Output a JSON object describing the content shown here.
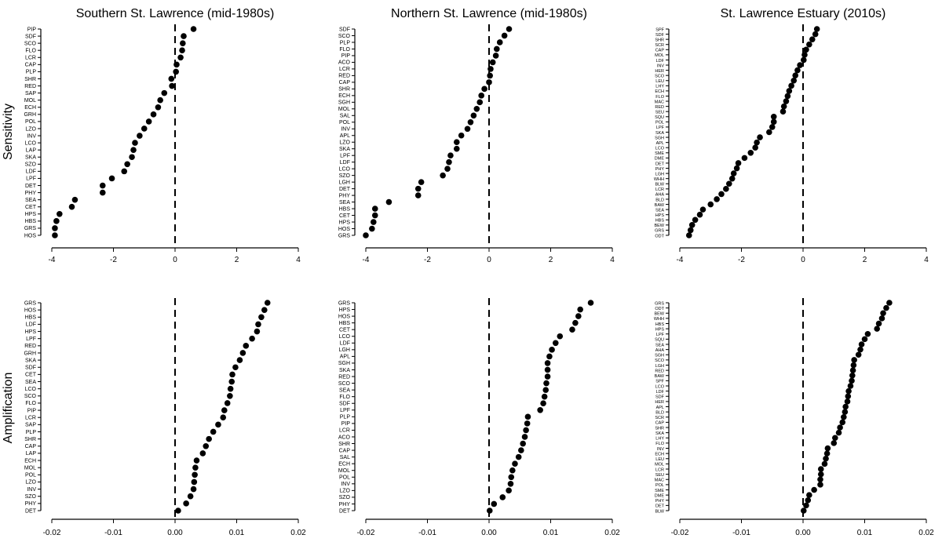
{
  "figure": {
    "row_labels": [
      "Sensitivity",
      "Amplification"
    ]
  },
  "colors": {
    "points": "#000000",
    "axes": "#000000",
    "zero_line": "#000000",
    "background": "#ffffff"
  },
  "chart_data": [
    {
      "type": "scatter",
      "title": "Southern St. Lawrence (mid-1980s)",
      "ylabel": "Sensitivity",
      "xlim": [
        -4,
        4
      ],
      "xticks": [
        "-4",
        "-2",
        "0",
        "2",
        "4"
      ],
      "reference_line": 0,
      "categories": [
        "PIP",
        "SDF",
        "SCO",
        "FLO",
        "LCR",
        "CAP",
        "PLP",
        "SHR",
        "RED",
        "SAP",
        "MOL",
        "ECH",
        "GRH",
        "POL",
        "LZO",
        "INV",
        "LCO",
        "LAP",
        "SKA",
        "SZO",
        "LDF",
        "LPF",
        "DET",
        "PHY",
        "SEA",
        "CET",
        "HPS",
        "HBS",
        "GRS",
        "HOS"
      ],
      "values": [
        0.6,
        0.28,
        0.25,
        0.23,
        0.18,
        0.05,
        0.03,
        -0.12,
        -0.1,
        -0.35,
        -0.48,
        -0.55,
        -0.7,
        -0.85,
        -1.0,
        -1.15,
        -1.3,
        -1.35,
        -1.4,
        -1.55,
        -1.65,
        -2.05,
        -2.35,
        -2.35,
        -3.25,
        -3.35,
        -3.75,
        -3.85,
        -3.9,
        -3.9
      ]
    },
    {
      "type": "scatter",
      "title": "Northern St. Lawrence (mid-1980s)",
      "ylabel": "Sensitivity",
      "xlim": [
        -4,
        4
      ],
      "xticks": [
        "-4",
        "-2",
        "0",
        "2",
        "4"
      ],
      "reference_line": 0,
      "categories": [
        "SDF",
        "SCO",
        "PLP",
        "FLO",
        "PIP",
        "ACO",
        "LCR",
        "RED",
        "CAP",
        "SHR",
        "ECH",
        "SGH",
        "MOL",
        "SAL",
        "POL",
        "INV",
        "APL",
        "LZO",
        "SKA",
        "LPF",
        "LDF",
        "LCO",
        "SZO",
        "LGH",
        "DET",
        "PHY",
        "SEA",
        "HBS",
        "CET",
        "HPS",
        "HOS",
        "GRS"
      ],
      "values": [
        0.65,
        0.5,
        0.35,
        0.25,
        0.22,
        0.12,
        0.05,
        0.03,
        0.0,
        -0.15,
        -0.25,
        -0.3,
        -0.4,
        -0.5,
        -0.6,
        -0.7,
        -0.9,
        -1.05,
        -1.05,
        -1.25,
        -1.3,
        -1.35,
        -1.5,
        -2.2,
        -2.3,
        -2.3,
        -3.25,
        -3.7,
        -3.7,
        -3.75,
        -3.8,
        -4.0
      ]
    },
    {
      "type": "scatter",
      "title": "St. Lawrence Estuary (2010s)",
      "ylabel": "Sensitivity",
      "xlim": [
        -4,
        4
      ],
      "xticks": [
        "-4",
        "-2",
        "0",
        "2",
        "4"
      ],
      "reference_line": 0,
      "categories": [
        "SPF",
        "SDF",
        "SHR",
        "SCR",
        "CAP",
        "MOL",
        "LDF",
        "INV",
        "HER",
        "SCO",
        "LEU",
        "LHY",
        "ECH",
        "FLO",
        "MAC",
        "RED",
        "SEU",
        "SQU",
        "POL",
        "LPF",
        "SKA",
        "SGH",
        "APL",
        "LCO",
        "SME",
        "DME",
        "DET",
        "PHY",
        "LGH",
        "WHH",
        "BLW",
        "LCR",
        "AHA",
        "BLD",
        "BAW",
        "SEA",
        "HPS",
        "HBS",
        "BEW",
        "GRS",
        "ODT"
      ],
      "values": [
        0.45,
        0.4,
        0.3,
        0.2,
        0.1,
        0.05,
        0.02,
        -0.1,
        -0.18,
        -0.25,
        -0.3,
        -0.38,
        -0.45,
        -0.5,
        -0.55,
        -0.62,
        -0.65,
        -0.95,
        -0.95,
        -1.0,
        -1.1,
        -1.4,
        -1.5,
        -1.55,
        -1.7,
        -1.9,
        -2.1,
        -2.15,
        -2.25,
        -2.3,
        -2.4,
        -2.5,
        -2.65,
        -2.8,
        -3.0,
        -3.25,
        -3.35,
        -3.5,
        -3.6,
        -3.65,
        -3.7
      ]
    },
    {
      "type": "scatter",
      "title": "",
      "ylabel": "Amplification",
      "xlim": [
        -0.02,
        0.02
      ],
      "xticks": [
        "-0.02",
        "-0.01",
        "0.00",
        "0.01",
        "0.02"
      ],
      "reference_line": 0,
      "categories": [
        "GRS",
        "HOS",
        "HBS",
        "LDF",
        "HPS",
        "LPF",
        "RED",
        "GRH",
        "SKA",
        "SDF",
        "CET",
        "SEA",
        "LCO",
        "SCO",
        "FLO",
        "PIP",
        "LCR",
        "SAP",
        "PLP",
        "SHR",
        "CAP",
        "LAP",
        "ECH",
        "MOL",
        "POL",
        "LZO",
        "INV",
        "SZO",
        "PHY",
        "DET"
      ],
      "values": [
        0.015,
        0.0145,
        0.014,
        0.0135,
        0.0133,
        0.0125,
        0.0115,
        0.011,
        0.0105,
        0.0098,
        0.0093,
        0.0092,
        0.009,
        0.0089,
        0.0085,
        0.008,
        0.0078,
        0.007,
        0.0062,
        0.0055,
        0.005,
        0.0045,
        0.0035,
        0.0033,
        0.0032,
        0.0031,
        0.003,
        0.0025,
        0.0018,
        0.0005
      ]
    },
    {
      "type": "scatter",
      "title": "",
      "ylabel": "Amplification",
      "xlim": [
        -0.02,
        0.02
      ],
      "xticks": [
        "-0.02",
        "-0.01",
        "0.00",
        "0.01",
        "0.02"
      ],
      "reference_line": 0,
      "categories": [
        "GRS",
        "HPS",
        "HOS",
        "HBS",
        "CET",
        "LCO",
        "LDF",
        "LGH",
        "APL",
        "SGH",
        "SKA",
        "RED",
        "SCO",
        "SEA",
        "FLO",
        "SDF",
        "LPF",
        "PLP",
        "PIP",
        "LCR",
        "ACO",
        "SHR",
        "CAP",
        "SAL",
        "ECH",
        "MOL",
        "POL",
        "INV",
        "LZO",
        "SZO",
        "PHY",
        "DET"
      ],
      "values": [
        0.0165,
        0.0148,
        0.0145,
        0.014,
        0.0135,
        0.0115,
        0.0108,
        0.0102,
        0.0098,
        0.0095,
        0.0095,
        0.0095,
        0.0093,
        0.0092,
        0.009,
        0.0088,
        0.0083,
        0.0063,
        0.0062,
        0.006,
        0.0058,
        0.0055,
        0.0052,
        0.0048,
        0.0042,
        0.0038,
        0.0036,
        0.0035,
        0.0032,
        0.0022,
        0.0008,
        0.0001
      ]
    },
    {
      "type": "scatter",
      "title": "",
      "ylabel": "Amplification",
      "xlim": [
        -0.02,
        0.02
      ],
      "xticks": [
        "-0.02",
        "-0.01",
        "0.00",
        "0.01",
        "0.02"
      ],
      "reference_line": 0,
      "categories": [
        "GRS",
        "ODT",
        "BEW",
        "WHH",
        "HBS",
        "HPS",
        "LPF",
        "SQU",
        "SEA",
        "AHA",
        "SGH",
        "SCO",
        "LGH",
        "RED",
        "BAW",
        "SPF",
        "LCO",
        "LDF",
        "SDF",
        "HER",
        "APL",
        "BLD",
        "SCR",
        "CAP",
        "SHR",
        "SKA",
        "LHY",
        "FLO",
        "INV",
        "ECH",
        "LEU",
        "MOL",
        "LCR",
        "SEU",
        "MAC",
        "POL",
        "SME",
        "DME",
        "PHY",
        "DET",
        "BLW"
      ],
      "values": [
        0.014,
        0.0135,
        0.013,
        0.0128,
        0.0123,
        0.012,
        0.0105,
        0.01,
        0.0095,
        0.0093,
        0.009,
        0.0083,
        0.0082,
        0.0081,
        0.008,
        0.0079,
        0.0077,
        0.0074,
        0.0073,
        0.0072,
        0.0069,
        0.0068,
        0.0066,
        0.0064,
        0.006,
        0.0058,
        0.0052,
        0.005,
        0.004,
        0.0039,
        0.0037,
        0.0035,
        0.0029,
        0.0029,
        0.0028,
        0.0028,
        0.0018,
        0.001,
        0.0008,
        0.0005,
        0.0001
      ]
    }
  ]
}
